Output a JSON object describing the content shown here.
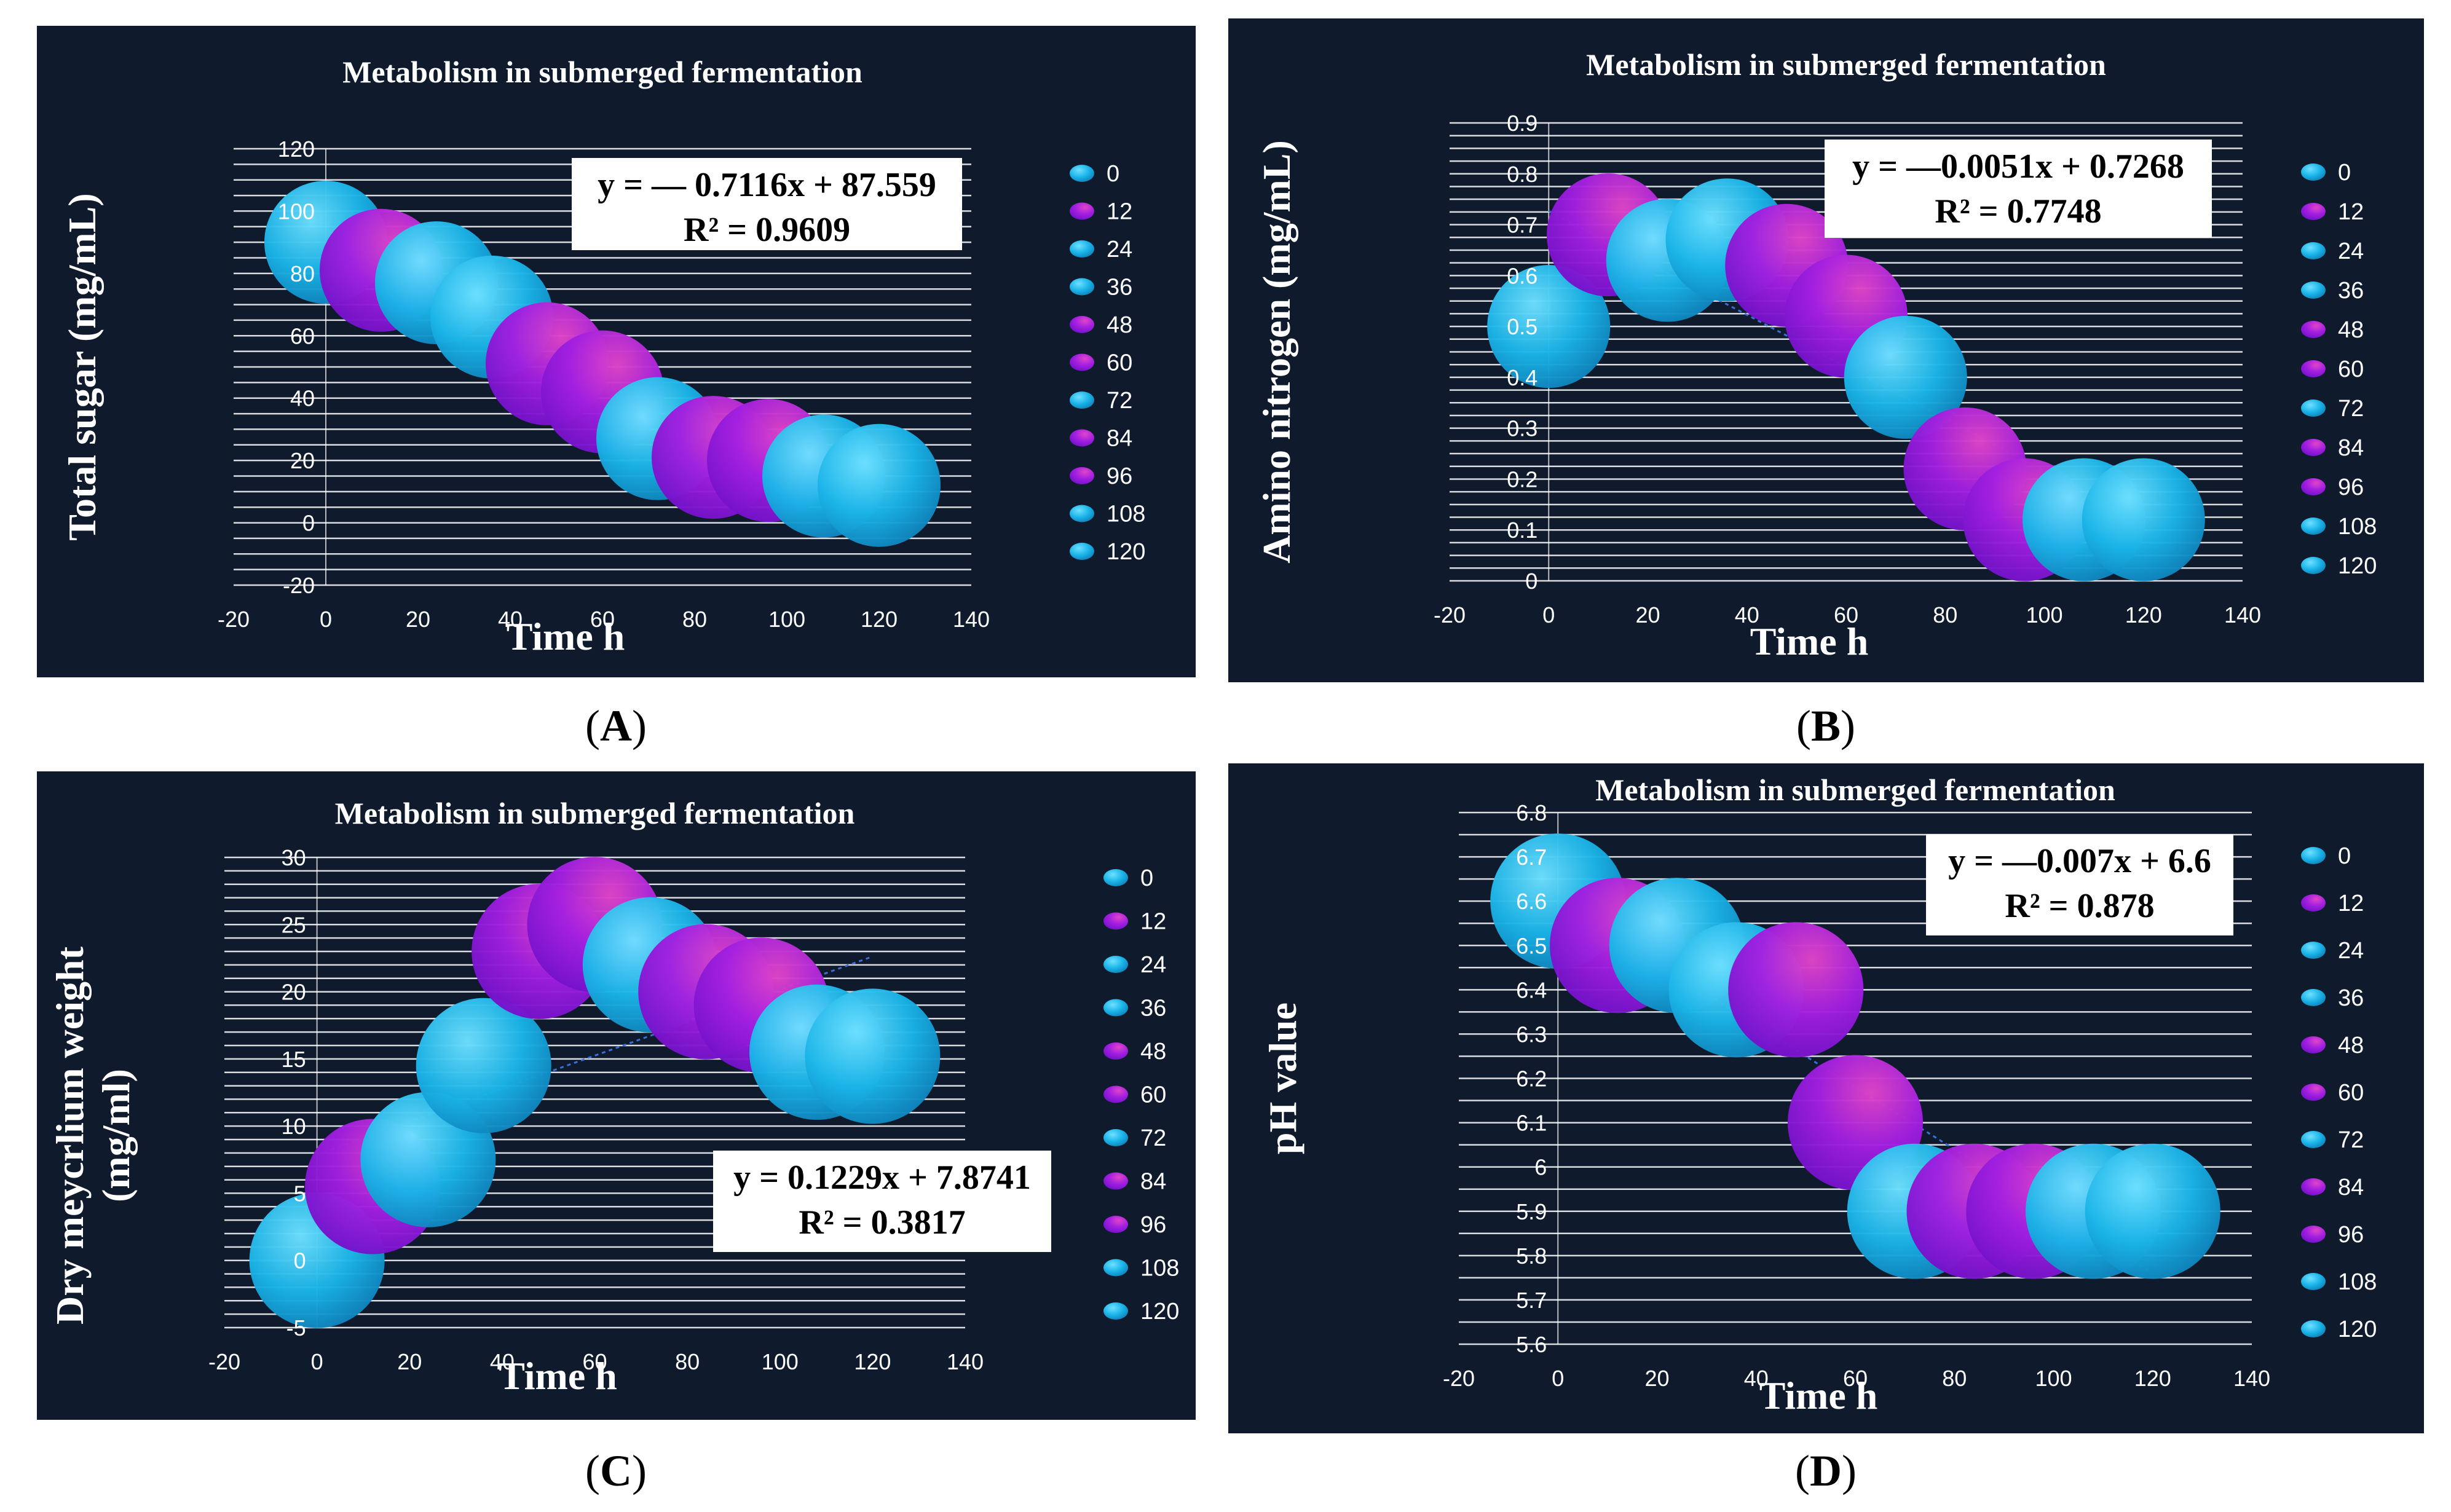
{
  "colors": {
    "panel_bg": "#0f1a2c",
    "cyan": "#1ab4e8",
    "purple": "#9b1ee0",
    "cyan_light": "#56d6ff",
    "purple_light": "#d03ad0"
  },
  "captions": [
    "A",
    "B",
    "C",
    "D"
  ],
  "chart_data": [
    {
      "type": "scatter",
      "title": "Metabolism in submerged fermentation",
      "xlabel": "Time h",
      "ylabel": "Total sugar (mg/mL)",
      "xlim": [
        -20,
        140
      ],
      "ylim": [
        -20,
        120
      ],
      "xticks": [
        -20,
        0,
        20,
        40,
        60,
        80,
        100,
        120,
        140
      ],
      "yticks": [
        -20,
        0,
        20,
        40,
        60,
        80,
        100,
        120
      ],
      "minor_grid_step": 5,
      "x": [
        0,
        12,
        24,
        36,
        48,
        60,
        72,
        84,
        96,
        108,
        120
      ],
      "y": [
        90,
        81,
        77,
        66,
        51,
        42,
        27,
        21,
        20,
        15,
        12
      ],
      "legend": [
        "0",
        "12",
        "24",
        "36",
        "48",
        "60",
        "72",
        "84",
        "96",
        "108",
        "120"
      ],
      "point_colors": [
        "cyan",
        "purple",
        "cyan",
        "cyan",
        "purple",
        "purple",
        "cyan",
        "purple",
        "purple",
        "cyan",
        "cyan"
      ],
      "equation": "y = — 0.7116x + 87.559",
      "r2": "R² = 0.9609",
      "trend": {
        "slope": -0.7116,
        "intercept": 87.559
      }
    },
    {
      "type": "scatter",
      "title": "Metabolism in submerged fermentation",
      "xlabel": "Time h",
      "ylabel": "Amino nitrogen (mg/mL)",
      "xlim": [
        -20,
        140
      ],
      "ylim": [
        0,
        0.9
      ],
      "xticks": [
        -20,
        0,
        20,
        40,
        60,
        80,
        100,
        120,
        140
      ],
      "yticks": [
        0,
        0.1,
        0.2,
        0.3,
        0.4,
        0.5,
        0.6,
        0.7,
        0.8,
        0.9
      ],
      "minor_grid_step": 0.025,
      "x": [
        0,
        12,
        24,
        36,
        48,
        60,
        72,
        84,
        96,
        108,
        120
      ],
      "y": [
        0.5,
        0.68,
        0.63,
        0.67,
        0.62,
        0.52,
        0.4,
        0.22,
        0.12,
        0.12,
        0.12
      ],
      "legend": [
        "0",
        "12",
        "24",
        "36",
        "48",
        "60",
        "72",
        "84",
        "96",
        "108",
        "120"
      ],
      "point_colors": [
        "cyan",
        "purple",
        "cyan",
        "cyan",
        "purple",
        "purple",
        "cyan",
        "purple",
        "purple",
        "cyan",
        "cyan"
      ],
      "equation": "y = —0.0051x + 0.7268",
      "r2": "R² = 0.7748",
      "trend": {
        "slope": -0.0051,
        "intercept": 0.7268
      }
    },
    {
      "type": "scatter",
      "title": "Metabolism in submerged fermentation",
      "xlabel": "Time h",
      "ylabel_lines": [
        "Dry meycrlium weight",
        "(mg/ml)"
      ],
      "xlim": [
        -20,
        140
      ],
      "ylim": [
        -5,
        30
      ],
      "xticks": [
        -20,
        0,
        20,
        40,
        60,
        80,
        100,
        120,
        140
      ],
      "yticks": [
        -5,
        0,
        5,
        10,
        15,
        20,
        25,
        30
      ],
      "minor_grid_step": 1,
      "x": [
        0,
        12,
        24,
        36,
        48,
        60,
        72,
        84,
        96,
        108,
        120
      ],
      "y": [
        0,
        5.5,
        7.5,
        14.5,
        23,
        25,
        22,
        20,
        19,
        15.5,
        15.2
      ],
      "legend": [
        "0",
        "12",
        "24",
        "36",
        "48",
        "60",
        "72",
        "84",
        "96",
        "108",
        "120"
      ],
      "point_colors": [
        "cyan",
        "purple",
        "cyan",
        "cyan",
        "purple",
        "purple",
        "cyan",
        "purple",
        "purple",
        "cyan",
        "cyan"
      ],
      "equation": "y = 0.1229x + 7.8741",
      "r2": "R² = 0.3817",
      "trend": {
        "slope": 0.1229,
        "intercept": 7.8741
      }
    },
    {
      "type": "scatter",
      "title": "Metabolism in submerged fermentation",
      "xlabel": "Time h",
      "ylabel": "pH value",
      "xlim": [
        -20,
        140
      ],
      "ylim": [
        5.6,
        6.8
      ],
      "xticks": [
        -20,
        0,
        20,
        40,
        60,
        80,
        100,
        120,
        140
      ],
      "yticks": [
        5.6,
        5.7,
        5.8,
        5.9,
        6,
        6.1,
        6.2,
        6.3,
        6.4,
        6.5,
        6.6,
        6.7,
        6.8
      ],
      "minor_grid_step": 0.05,
      "x": [
        0,
        12,
        24,
        36,
        48,
        60,
        72,
        84,
        96,
        108,
        120
      ],
      "y": [
        6.6,
        6.5,
        6.5,
        6.4,
        6.4,
        6.1,
        5.9,
        5.9,
        5.9,
        5.9,
        5.9
      ],
      "legend": [
        "0",
        "12",
        "24",
        "36",
        "48",
        "60",
        "72",
        "84",
        "96",
        "108",
        "120"
      ],
      "point_colors": [
        "cyan",
        "purple",
        "cyan",
        "cyan",
        "purple",
        "purple",
        "cyan",
        "purple",
        "purple",
        "cyan",
        "cyan"
      ],
      "equation": "y = —0.007x + 6.6",
      "r2": "R² = 0.878",
      "trend": {
        "slope": -0.007,
        "intercept": 6.6
      }
    }
  ]
}
